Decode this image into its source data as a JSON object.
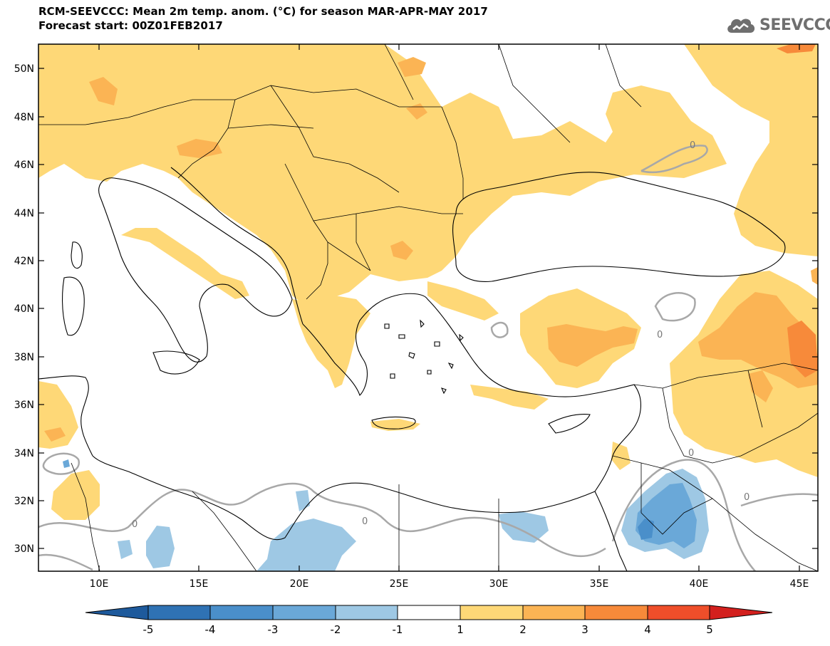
{
  "header": {
    "title_line1": "RCM-SEEVCCC: Mean 2m temp. anom. (°C) for season MAR-APR-MAY 2017",
    "title_line2": "Forecast start: 00Z01FEB2017"
  },
  "logo": {
    "text": "SEEVCCC",
    "icon": "cloud-icon"
  },
  "map": {
    "lat_labels": [
      "50N",
      "48N",
      "46N",
      "44N",
      "42N",
      "40N",
      "38N",
      "36N",
      "34N",
      "32N",
      "30N"
    ],
    "lon_labels": [
      "10E",
      "15E",
      "20E",
      "25E",
      "30E",
      "35E",
      "40E",
      "45E"
    ],
    "contour_label": "0"
  },
  "colorbar": {
    "labels": [
      "-5",
      "-4",
      "-3",
      "-2",
      "-1",
      "1",
      "2",
      "3",
      "4",
      "5"
    ],
    "colors": [
      "#1e5a9c",
      "#2f72b4",
      "#4a8fca",
      "#6aa8d8",
      "#9ec8e4",
      "#ffffff",
      "#fed877",
      "#fbb454",
      "#f78a3a",
      "#ef4e2a",
      "#d3201e"
    ]
  }
}
